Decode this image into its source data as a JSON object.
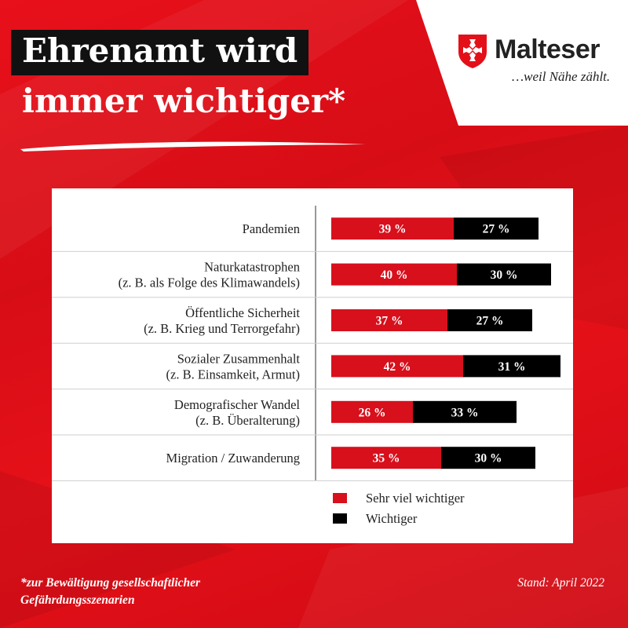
{
  "header": {
    "title_line1": "Ehrenamt wird",
    "title_line2": "immer wichtiger*"
  },
  "brand": {
    "name": "Malteser",
    "slogan": "…weil Nähe zählt.",
    "logo_icon": "maltese-cross-shield-icon"
  },
  "colors": {
    "background": "#e3101a",
    "sehr_viel": "#d7101c",
    "wichtiger": "#000000",
    "card": "#ffffff"
  },
  "chart_data": {
    "type": "bar",
    "orientation": "horizontal",
    "stacked": true,
    "categories": [
      [
        "Pandemien"
      ],
      [
        "Naturkatastrophen",
        "(z. B. als Folge des Klimawandels)"
      ],
      [
        "Öffentliche Sicherheit",
        "(z. B. Krieg und Terrorgefahr)"
      ],
      [
        "Sozialer Zusammenhalt",
        "(z. B. Einsamkeit, Armut)"
      ],
      [
        "Demografischer Wandel",
        "(z. B. Überalterung)"
      ],
      [
        "Migration / Zuwanderung"
      ]
    ],
    "series": [
      {
        "name": "Sehr viel wichtiger",
        "values": [
          39,
          40,
          37,
          42,
          26,
          35
        ],
        "labels": [
          "39 %",
          "40 %",
          "37 %",
          "42 %",
          "26 %",
          "35 %"
        ]
      },
      {
        "name": "Wichtiger",
        "values": [
          27,
          30,
          27,
          31,
          33,
          30
        ],
        "labels": [
          "27 %",
          "30 %",
          "27 %",
          "31 %",
          "33 %",
          "30 %"
        ]
      }
    ],
    "legend_position": "bottom"
  },
  "footer": {
    "footnote_line1": "*zur Bewältigung gesellschaftlicher",
    "footnote_line2": "Gefährdungsszenarien",
    "stand": "Stand: April 2022"
  }
}
